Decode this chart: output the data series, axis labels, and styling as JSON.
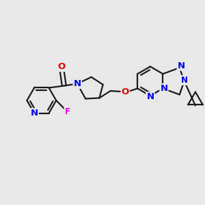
{
  "background_color": "#e8e8e8",
  "figsize": [
    3.0,
    3.0
  ],
  "dpi": 100,
  "C": "#1a1a1a",
  "N": "#0000ee",
  "O": "#dd0000",
  "F": "#ee00ee",
  "lw": 1.6,
  "fs": 8.5
}
